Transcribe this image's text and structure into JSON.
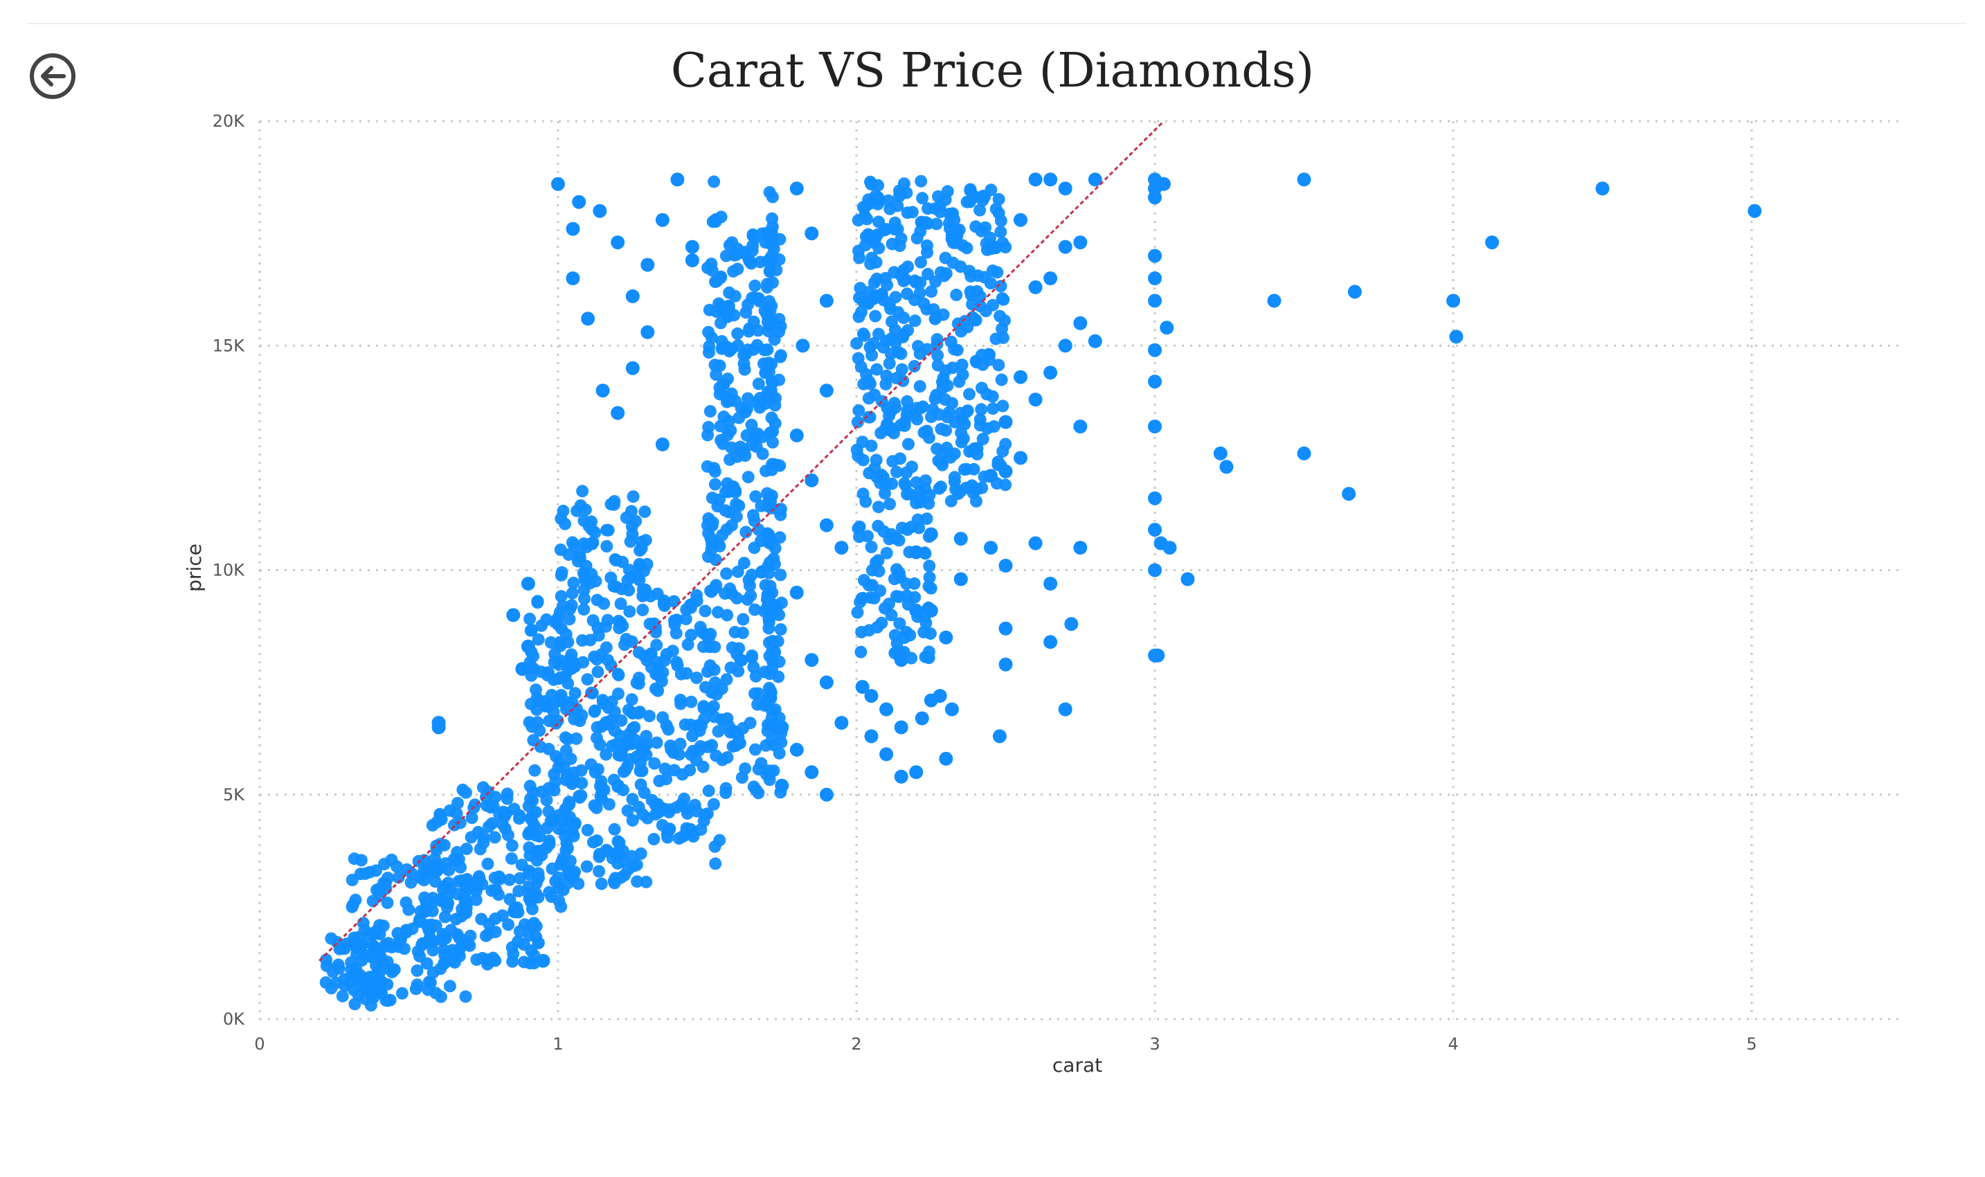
{
  "colors": {
    "points": "#118DFF",
    "trend": "#C4314B",
    "grid": "#C8C8C8",
    "axis_text": "#555555",
    "title": "#222222"
  },
  "icons": {
    "back": "back-arrow-circle-icon"
  },
  "chart_data": {
    "type": "scatter",
    "title": "Carat VS Price (Diamonds)",
    "xlabel": "carat",
    "ylabel": "price",
    "xlim": [
      0,
      5.5
    ],
    "ylim": [
      0,
      20000
    ],
    "x_ticks": [
      {
        "value": 0,
        "label": "0"
      },
      {
        "value": 1,
        "label": "1"
      },
      {
        "value": 2,
        "label": "2"
      },
      {
        "value": 3,
        "label": "3"
      },
      {
        "value": 4,
        "label": "4"
      },
      {
        "value": 5,
        "label": "5"
      }
    ],
    "y_ticks": [
      {
        "value": 0,
        "label": "0K"
      },
      {
        "value": 5000,
        "label": "5K"
      },
      {
        "value": 10000,
        "label": "10K"
      },
      {
        "value": 15000,
        "label": "15K"
      },
      {
        "value": 20000,
        "label": "20K"
      }
    ],
    "grid": true,
    "trend_line": {
      "x": [
        0.2,
        3.03
      ],
      "y": [
        1300,
        20000
      ],
      "style": "dashed"
    },
    "dense_regions": [
      {
        "x": [
          0.22,
          0.45
        ],
        "y": [
          300,
          1900
        ]
      },
      {
        "x": [
          0.3,
          0.7
        ],
        "y": [
          400,
          3600
        ]
      },
      {
        "x": [
          0.55,
          0.95
        ],
        "y": [
          1200,
          5200
        ]
      },
      {
        "x": [
          0.9,
          1.05
        ],
        "y": [
          2500,
          9500
        ]
      },
      {
        "x": [
          1.0,
          1.3
        ],
        "y": [
          3000,
          11800
        ]
      },
      {
        "x": [
          1.3,
          1.5
        ],
        "y": [
          4000,
          9500
        ]
      },
      {
        "x": [
          1.5,
          1.55
        ],
        "y": [
          3200,
          18700
        ]
      },
      {
        "x": [
          1.55,
          1.75
        ],
        "y": [
          5000,
          17500
        ]
      },
      {
        "x": [
          1.7,
          1.72
        ],
        "y": [
          6000,
          18700
        ]
      },
      {
        "x": [
          2.0,
          2.25
        ],
        "y": [
          8000,
          18700
        ]
      },
      {
        "x": [
          2.25,
          2.5
        ],
        "y": [
          11500,
          18500
        ]
      }
    ],
    "scatter_points": [
      [
        0.6,
        6600
      ],
      [
        0.6,
        6500
      ],
      [
        0.9,
        9700
      ],
      [
        0.9,
        8300
      ],
      [
        0.95,
        1300
      ],
      [
        0.88,
        7800
      ],
      [
        0.85,
        9000
      ],
      [
        1.0,
        18600
      ],
      [
        1.05,
        17600
      ],
      [
        1.07,
        18200
      ],
      [
        1.14,
        18000
      ],
      [
        1.05,
        16500
      ],
      [
        1.1,
        15600
      ],
      [
        1.2,
        17300
      ],
      [
        1.25,
        16100
      ],
      [
        1.3,
        16800
      ],
      [
        1.35,
        17800
      ],
      [
        1.4,
        18700
      ],
      [
        1.45,
        17200
      ],
      [
        1.15,
        14000
      ],
      [
        1.2,
        13500
      ],
      [
        1.25,
        14500
      ],
      [
        1.3,
        15300
      ],
      [
        1.35,
        12800
      ],
      [
        1.45,
        16900
      ],
      [
        1.8,
        18500
      ],
      [
        1.85,
        17500
      ],
      [
        1.9,
        16000
      ],
      [
        1.82,
        15000
      ],
      [
        1.9,
        14000
      ],
      [
        1.8,
        13000
      ],
      [
        1.85,
        12000
      ],
      [
        1.9,
        11000
      ],
      [
        1.95,
        10500
      ],
      [
        1.8,
        9500
      ],
      [
        1.85,
        8000
      ],
      [
        1.9,
        7500
      ],
      [
        1.75,
        6500
      ],
      [
        1.8,
        6000
      ],
      [
        1.85,
        5500
      ],
      [
        1.9,
        5000
      ],
      [
        1.95,
        6600
      ],
      [
        1.75,
        5200
      ],
      [
        2.02,
        7400
      ],
      [
        2.05,
        7200
      ],
      [
        2.1,
        6900
      ],
      [
        2.05,
        6300
      ],
      [
        2.1,
        5900
      ],
      [
        2.15,
        5400
      ],
      [
        2.2,
        5500
      ],
      [
        2.25,
        7100
      ],
      [
        2.28,
        7200
      ],
      [
        2.32,
        6900
      ],
      [
        2.22,
        6700
      ],
      [
        2.15,
        6500
      ],
      [
        2.3,
        5800
      ],
      [
        2.15,
        8000
      ],
      [
        2.2,
        9100
      ],
      [
        2.25,
        9100
      ],
      [
        2.3,
        8500
      ],
      [
        2.2,
        10400
      ],
      [
        2.25,
        10800
      ],
      [
        2.35,
        10700
      ],
      [
        2.4,
        11800
      ],
      [
        2.45,
        12100
      ],
      [
        2.5,
        12200
      ],
      [
        2.55,
        12500
      ],
      [
        2.5,
        13300
      ],
      [
        2.6,
        13800
      ],
      [
        2.55,
        14300
      ],
      [
        2.65,
        14400
      ],
      [
        2.7,
        15000
      ],
      [
        2.75,
        15500
      ],
      [
        2.8,
        15100
      ],
      [
        2.6,
        16300
      ],
      [
        2.65,
        16500
      ],
      [
        2.7,
        17200
      ],
      [
        2.75,
        17300
      ],
      [
        2.55,
        17800
      ],
      [
        2.6,
        18700
      ],
      [
        2.65,
        18700
      ],
      [
        2.7,
        18500
      ],
      [
        2.8,
        18700
      ],
      [
        2.35,
        9800
      ],
      [
        2.45,
        10500
      ],
      [
        2.5,
        10100
      ],
      [
        2.6,
        10600
      ],
      [
        2.65,
        9700
      ],
      [
        2.75,
        10500
      ],
      [
        2.5,
        8700
      ],
      [
        2.5,
        7900
      ],
      [
        2.48,
        6300
      ],
      [
        2.7,
        6900
      ],
      [
        2.72,
        8800
      ],
      [
        2.65,
        8400
      ],
      [
        2.75,
        13200
      ],
      [
        3.0,
        18700
      ],
      [
        3.0,
        18500
      ],
      [
        3.0,
        18300
      ],
      [
        3.03,
        18600
      ],
      [
        3.0,
        17000
      ],
      [
        3.0,
        16500
      ],
      [
        3.0,
        16000
      ],
      [
        3.04,
        15400
      ],
      [
        3.0,
        14900
      ],
      [
        3.0,
        14200
      ],
      [
        3.0,
        13200
      ],
      [
        3.0,
        11600
      ],
      [
        3.0,
        10900
      ],
      [
        3.02,
        10600
      ],
      [
        3.05,
        10500
      ],
      [
        3.0,
        10000
      ],
      [
        3.11,
        9800
      ],
      [
        3.0,
        8100
      ],
      [
        3.01,
        8100
      ],
      [
        3.22,
        12600
      ],
      [
        3.24,
        12300
      ],
      [
        3.4,
        16000
      ],
      [
        3.5,
        18700
      ],
      [
        3.5,
        12600
      ],
      [
        3.65,
        11700
      ],
      [
        3.67,
        16200
      ],
      [
        4.0,
        16000
      ],
      [
        4.01,
        15200
      ],
      [
        4.13,
        17300
      ],
      [
        4.5,
        18500
      ],
      [
        5.01,
        18000
      ]
    ]
  }
}
